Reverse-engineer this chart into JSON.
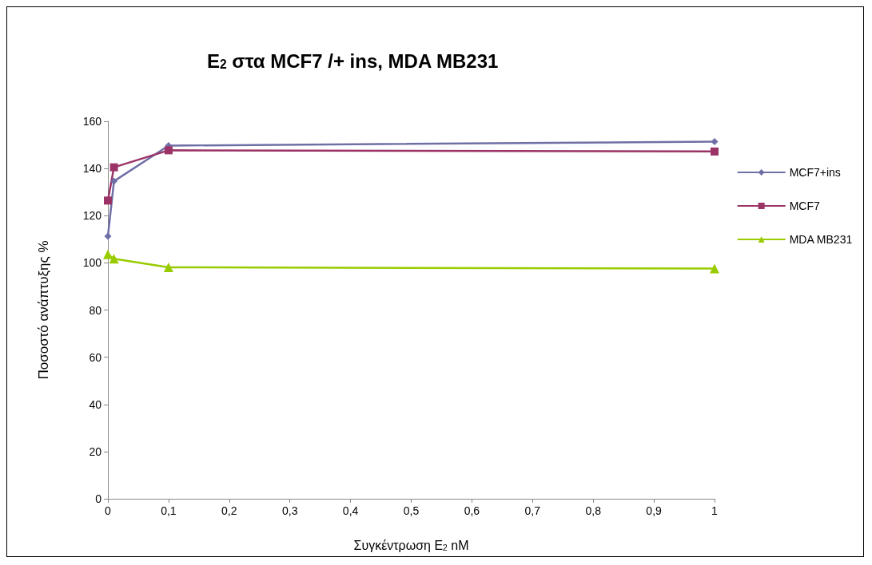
{
  "chart_data": {
    "type": "line",
    "title": "E$_{2}$ στα MCF7 /+ ins, MDA MB231",
    "xlabel": "Συγκέντρωση E$_{2}$ nM",
    "ylabel": "Ποσοστό ανάπτυξης %",
    "x": [
      0,
      0.01,
      0.1,
      1
    ],
    "series": [
      {
        "name": "MCF7+ins",
        "color": "#6f6fa6",
        "marker": "diamond",
        "values": [
          111.3,
          134.6,
          149.7,
          151.4
        ]
      },
      {
        "name": "MCF7",
        "color": "#9b3366",
        "marker": "square",
        "values": [
          126.4,
          140.5,
          147.7,
          147.2
        ]
      },
      {
        "name": "MDA MB231",
        "color": "#99cc00",
        "marker": "triangle",
        "values": [
          103.6,
          101.7,
          98.1,
          97.6
        ]
      }
    ],
    "xlim": [
      0,
      1
    ],
    "xticks": [
      0,
      {
        "value": 0.1,
        "label": "0,1"
      },
      {
        "value": 0.2,
        "label": "0,2"
      },
      {
        "value": 0.3,
        "label": "0,3"
      },
      {
        "value": 0.4,
        "label": "0,4"
      },
      {
        "value": 0.5,
        "label": "0,5"
      },
      {
        "value": 0.6,
        "label": "0,6"
      },
      {
        "value": 0.7,
        "label": "0,7"
      },
      {
        "value": 0.8,
        "label": "0,8"
      },
      {
        "value": 0.9,
        "label": "0,9"
      },
      1
    ],
    "ylim": [
      0,
      160
    ],
    "yticks": [
      0,
      20,
      40,
      60,
      80,
      100,
      120,
      140,
      160
    ],
    "grid": false,
    "legend": "right"
  }
}
